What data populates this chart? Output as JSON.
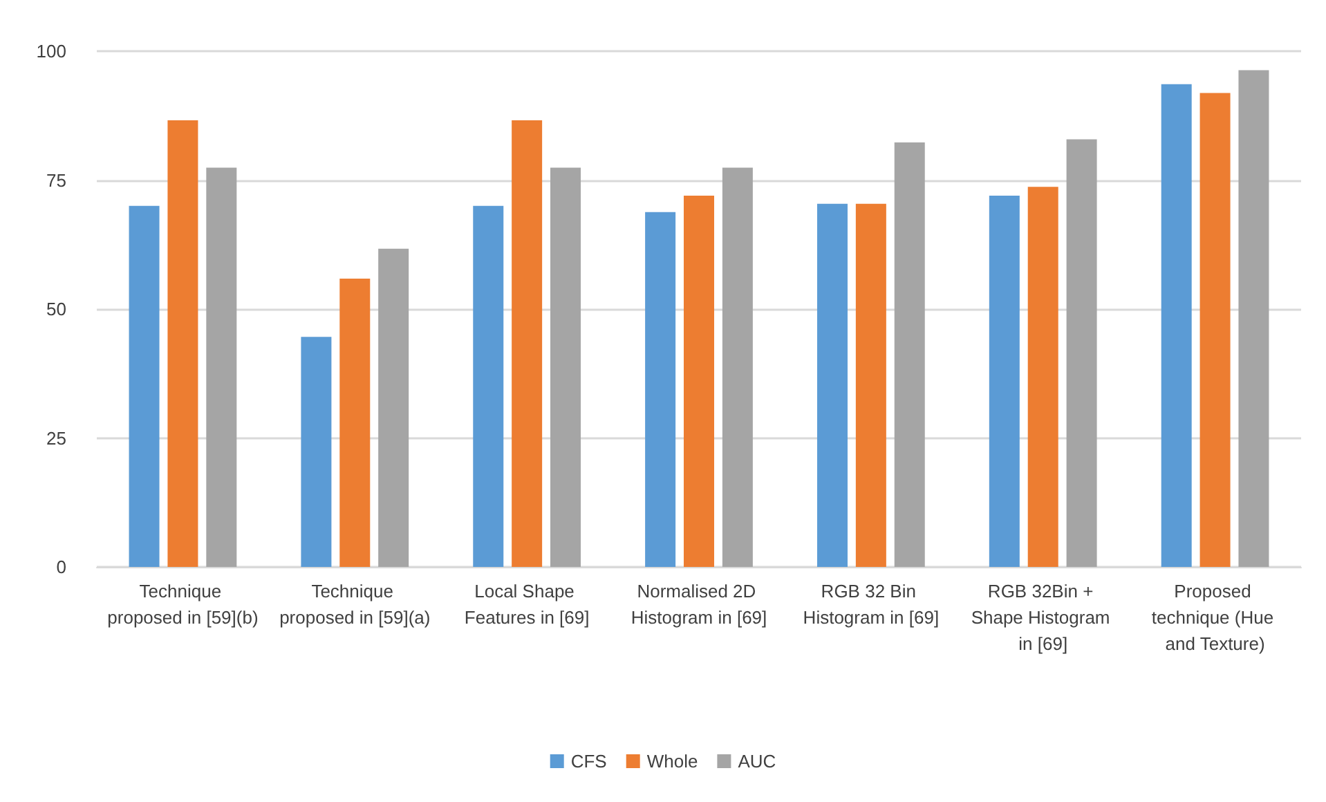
{
  "chart_data": {
    "type": "bar",
    "categories": [
      "Technique proposed in [59](b)",
      "Technique proposed in [59](a)",
      "Local Shape Features in [69]",
      "Normalised 2D Histogram in [69]",
      "RGB 32 Bin Histogram in [69]",
      "RGB 32Bin + Shape Histogram in [69]",
      "Proposed technique (Hue and Texture)"
    ],
    "series": [
      {
        "name": "CFS",
        "color": "#5b9bd5",
        "values": [
          70,
          44.6,
          70,
          68.8,
          70.4,
          72,
          93.6
        ]
      },
      {
        "name": "Whole",
        "color": "#ed7d31",
        "values": [
          86.6,
          55.9,
          86.6,
          72,
          70.4,
          73.7,
          91.9
        ]
      },
      {
        "name": "AUC",
        "color": "#a5a5a5",
        "values": [
          77.4,
          61.7,
          77.4,
          77.4,
          82.3,
          82.9,
          96.3
        ]
      }
    ],
    "ylim": [
      0,
      100
    ],
    "yticks": [
      0,
      25,
      50,
      75,
      100
    ],
    "grid": "y",
    "legend": "bottom"
  }
}
